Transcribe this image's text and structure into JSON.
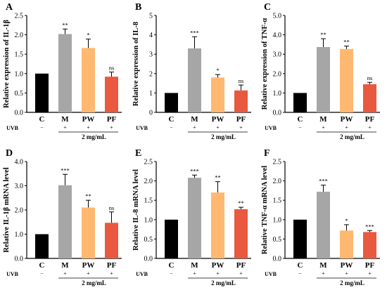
{
  "colors": {
    "C": "#000000",
    "M": "#a6a6a6",
    "PW": "#ffb870",
    "PF": "#e8593f",
    "axis": "#000000"
  },
  "chart_data": [
    {
      "type": "bar",
      "panel": "A",
      "ylabel": "Relative expression of IL-1β",
      "ylim": [
        0,
        2.5
      ],
      "yticks": [
        "0.0",
        "0.5",
        "1.0",
        "1.5",
        "2.0",
        "2.5"
      ],
      "categories": [
        "C",
        "M",
        "PW",
        "PF"
      ],
      "values": [
        1.0,
        2.02,
        1.66,
        0.92
      ],
      "errors": [
        0,
        0.13,
        0.23,
        0.12
      ],
      "significance": [
        "",
        "**",
        "*",
        "ns"
      ],
      "uvb_label": "UVB",
      "uvb": [
        "−",
        "+",
        "+",
        "+"
      ],
      "concentration": "2 mg/mL"
    },
    {
      "type": "bar",
      "panel": "B",
      "ylabel": "Relative expression of IL-8",
      "ylim": [
        0,
        5
      ],
      "yticks": [
        "0",
        "1",
        "2",
        "3",
        "4",
        "5"
      ],
      "categories": [
        "C",
        "M",
        "PW",
        "PF"
      ],
      "values": [
        1.0,
        3.3,
        1.8,
        1.13
      ],
      "errors": [
        0,
        0.6,
        0.15,
        0.28
      ],
      "significance": [
        "",
        "***",
        "*",
        "ns"
      ],
      "uvb_label": "UVB",
      "uvb": [
        "−",
        "+",
        "+",
        "+"
      ],
      "concentration": "2 mg/mL"
    },
    {
      "type": "bar",
      "panel": "C",
      "ylabel": "Relative expression of TNF-α",
      "ylim": [
        0,
        5.0
      ],
      "yticks": [
        "0.0",
        "1.0",
        "2.0",
        "3.0",
        "4.0",
        "5.0"
      ],
      "categories": [
        "C",
        "M",
        "PW",
        "PF"
      ],
      "values": [
        1.0,
        3.37,
        3.27,
        1.45
      ],
      "errors": [
        0,
        0.43,
        0.15,
        0.1
      ],
      "significance": [
        "",
        "**",
        "**",
        "ns"
      ],
      "uvb_label": "UVB",
      "uvb": [
        "−",
        "+",
        "+",
        "+"
      ],
      "concentration": "2 mg/mL"
    },
    {
      "type": "bar",
      "panel": "D",
      "ylabel": "Relative IL-1β mRNA level",
      "ylim": [
        0,
        4.0
      ],
      "yticks": [
        "0.0",
        "1.0",
        "2.0",
        "3.0",
        "4.0"
      ],
      "categories": [
        "C",
        "M",
        "PW",
        "PF"
      ],
      "values": [
        1.0,
        3.02,
        2.1,
        1.47
      ],
      "errors": [
        0,
        0.45,
        0.3,
        0.45
      ],
      "significance": [
        "",
        "***",
        "**",
        "ns"
      ],
      "uvb_label": "UVB",
      "uvb": [
        "−",
        "+",
        "+",
        "+"
      ],
      "concentration": "2 mg/mL"
    },
    {
      "type": "bar",
      "panel": "E",
      "ylabel": "Relative IL-8 mRNA level",
      "ylim": [
        0,
        2.5
      ],
      "yticks": [
        "0.0",
        "0.5",
        "1.0",
        "1.5",
        "2.0",
        "2.5"
      ],
      "categories": [
        "C",
        "M",
        "PW",
        "PF"
      ],
      "values": [
        1.0,
        2.08,
        1.7,
        1.27
      ],
      "errors": [
        0,
        0.07,
        0.28,
        0.05
      ],
      "significance": [
        "",
        "***",
        "**",
        "**"
      ],
      "uvb_label": "UVB",
      "uvb": [
        "−",
        "+",
        "+",
        "+"
      ],
      "concentration": "2 mg/mL"
    },
    {
      "type": "bar",
      "panel": "F",
      "ylabel": "Relative TNF-α mRNA level",
      "ylim": [
        0,
        2.5
      ],
      "yticks": [
        "0.0",
        "0.5",
        "1.0",
        "1.5",
        "2.0",
        "2.5"
      ],
      "categories": [
        "C",
        "M",
        "PW",
        "PF"
      ],
      "values": [
        1.0,
        1.72,
        0.72,
        0.68
      ],
      "errors": [
        0,
        0.17,
        0.15,
        0.04
      ],
      "significance": [
        "",
        "***",
        "*",
        "***"
      ],
      "uvb_label": "UVB",
      "uvb": [
        "−",
        "+",
        "+",
        "+"
      ],
      "concentration": "2 mg/mL"
    }
  ]
}
